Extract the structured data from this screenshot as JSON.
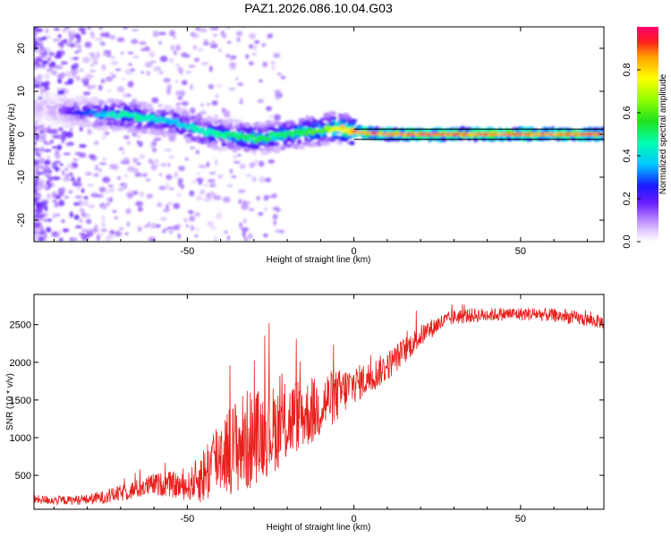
{
  "title": "PAZ1.2026.086.10.04.G03",
  "chart_data": [
    {
      "type": "heatmap",
      "title": "PAZ1.2026.086.10.04.G03",
      "xlabel": "Height of straight line (km)",
      "ylabel": "Frequency (Hz)",
      "xlim": [
        -96,
        75
      ],
      "ylim": [
        -25,
        25
      ],
      "xticks": [
        -50,
        0,
        50
      ],
      "yticks": [
        -20,
        -10,
        0,
        10,
        20
      ],
      "colorbar": {
        "label": "Normalized spectral amplitude",
        "range": [
          0,
          1
        ],
        "ticks": [
          0.0,
          0.2,
          0.4,
          0.6,
          0.8
        ],
        "tick_labels": [
          "0.0",
          "0.2",
          "0.4",
          "0.6",
          "0.8"
        ]
      },
      "ridge": {
        "x": [
          -92,
          -85,
          -80,
          -75,
          -70,
          -65,
          -60,
          -55,
          -50,
          -45,
          -40,
          -35,
          -30,
          -25,
          -20,
          -15,
          -10,
          -5,
          0,
          10,
          20,
          40,
          60,
          75
        ],
        "frequency": [
          6,
          5.5,
          5,
          4.5,
          4.5,
          4,
          3.5,
          3,
          2,
          0.5,
          0,
          -0.5,
          -1,
          -0.5,
          0,
          0.5,
          1,
          1.5,
          0.5,
          0,
          0,
          0,
          0,
          0
        ],
        "amplitude": [
          0.1,
          0.2,
          0.3,
          0.4,
          0.5,
          0.5,
          0.45,
          0.4,
          0.45,
          0.5,
          0.5,
          0.55,
          0.55,
          0.55,
          0.55,
          0.6,
          0.65,
          0.8,
          0.9,
          0.95,
          0.95,
          0.95,
          0.95,
          0.95
        ]
      }
    },
    {
      "type": "line",
      "xlabel": "Height of straight line (km)",
      "ylabel": "SNR (10 * v/v)",
      "xlim": [
        -96,
        75
      ],
      "ylim": [
        50,
        2900
      ],
      "xticks": [
        -50,
        0,
        50
      ],
      "yticks": [
        500,
        1000,
        1500,
        2000,
        2500
      ],
      "series": [
        {
          "name": "SNR",
          "color": "#e8201c",
          "x": [
            -96,
            -90,
            -85,
            -80,
            -75,
            -70,
            -65,
            -60,
            -55,
            -50,
            -48,
            -45,
            -42,
            -40,
            -37,
            -35,
            -32,
            -30,
            -28,
            -25,
            -22,
            -20,
            -17,
            -15,
            -12,
            -10,
            -8,
            -5,
            -2,
            0,
            5,
            10,
            15,
            20,
            25,
            30,
            35,
            40,
            45,
            50,
            55,
            60,
            65,
            70,
            75
          ],
          "values": [
            180,
            170,
            170,
            180,
            210,
            260,
            320,
            380,
            380,
            340,
            420,
            500,
            700,
            800,
            850,
            900,
            950,
            1000,
            1050,
            1100,
            1150,
            1200,
            1300,
            1300,
            1350,
            1400,
            1500,
            1550,
            1650,
            1700,
            1800,
            1950,
            2150,
            2350,
            2500,
            2600,
            2620,
            2630,
            2640,
            2640,
            2640,
            2620,
            2600,
            2560,
            2530
          ],
          "noise": [
            60,
            60,
            60,
            70,
            90,
            110,
            130,
            150,
            170,
            180,
            250,
            400,
            500,
            550,
            600,
            650,
            700,
            650,
            600,
            600,
            550,
            550,
            500,
            450,
            450,
            400,
            400,
            350,
            300,
            250,
            220,
            200,
            180,
            150,
            120,
            100,
            100,
            90,
            90,
            90,
            90,
            90,
            90,
            90,
            90
          ]
        }
      ]
    }
  ]
}
